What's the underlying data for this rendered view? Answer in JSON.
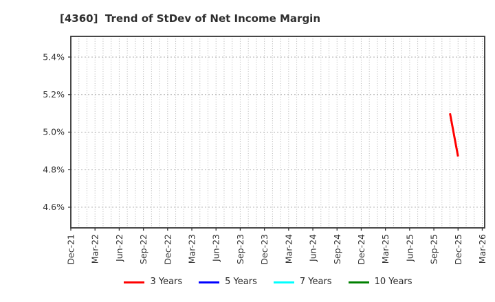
{
  "chart_data": {
    "type": "line",
    "title": "[4360]  Trend of StDev of Net Income Margin",
    "xlabel": "",
    "ylabel": "",
    "x_axis_start": "Dec-21",
    "x_span_months": 51.3,
    "x_tick_interval_months": 3,
    "x_tick_labels": [
      "Dec-21",
      "Mar-22",
      "Jun-22",
      "Sep-22",
      "Dec-22",
      "Mar-23",
      "Jun-23",
      "Sep-23",
      "Dec-23",
      "Mar-24",
      "Jun-24",
      "Sep-24",
      "Dec-24",
      "Mar-25",
      "Jun-25",
      "Sep-25",
      "Dec-25",
      "Mar-26"
    ],
    "y_ticks": [
      4.6,
      4.8,
      5.0,
      5.2,
      5.4
    ],
    "y_tick_labels": [
      "4.6%",
      "4.8%",
      "5.0%",
      "5.2%",
      "5.4%"
    ],
    "ylim": [
      4.49,
      5.51
    ],
    "grid": {
      "vertical": "monthly-dotted",
      "horizontal": "dotted-at-y-ticks",
      "on": true
    },
    "legend_position": "bottom-center",
    "series": [
      {
        "name": "3 Years",
        "color": "#ff0000",
        "points": [
          {
            "label": "Nov-25",
            "month": 47,
            "value": 5.1
          },
          {
            "label": "Dec-25",
            "month": 48,
            "value": 4.87
          }
        ]
      },
      {
        "name": "5 Years",
        "color": "#0000ff",
        "points": []
      },
      {
        "name": "7 Years",
        "color": "#00ffff",
        "points": []
      },
      {
        "name": "10 Years",
        "color": "#008000",
        "points": []
      }
    ]
  },
  "legend": {
    "items": [
      {
        "label": "3 Years",
        "color": "#ff0000"
      },
      {
        "label": "5 Years",
        "color": "#0000ff"
      },
      {
        "label": "7 Years",
        "color": "#00ffff"
      },
      {
        "label": "10 Years",
        "color": "#008000"
      }
    ]
  },
  "colors": {
    "spine": "#333333",
    "grid": "#aaaaaa",
    "tick_text": "#333333",
    "background": "#ffffff"
  }
}
